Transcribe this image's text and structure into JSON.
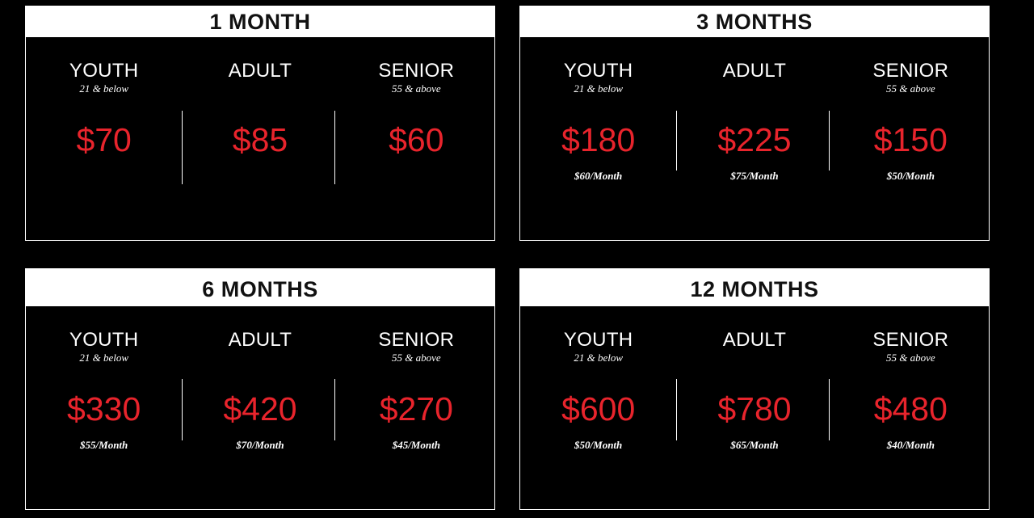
{
  "plans": [
    {
      "title": "1 MONTH",
      "tiers": [
        {
          "name": "YOUTH",
          "age": "21 & below",
          "price": "$70",
          "monthly": ""
        },
        {
          "name": "ADULT",
          "age": "",
          "price": "$85",
          "monthly": ""
        },
        {
          "name": "SENIOR",
          "age": "55 & above",
          "price": "$60",
          "monthly": ""
        }
      ]
    },
    {
      "title": "3 MONTHS",
      "tiers": [
        {
          "name": "YOUTH",
          "age": "21 & below",
          "price": "$180",
          "monthly": "$60/Month"
        },
        {
          "name": "ADULT",
          "age": "",
          "price": "$225",
          "monthly": "$75/Month"
        },
        {
          "name": "SENIOR",
          "age": "55 & above",
          "price": "$150",
          "monthly": "$50/Month"
        }
      ]
    },
    {
      "title": "6 MONTHS",
      "tiers": [
        {
          "name": "YOUTH",
          "age": "21 & below",
          "price": "$330",
          "monthly": "$55/Month"
        },
        {
          "name": "ADULT",
          "age": "",
          "price": "$420",
          "monthly": "$70/Month"
        },
        {
          "name": "SENIOR",
          "age": "55 & above",
          "price": "$270",
          "monthly": "$45/Month"
        }
      ]
    },
    {
      "title": "12 MONTHS",
      "tiers": [
        {
          "name": "YOUTH",
          "age": "21 & below",
          "price": "$600",
          "monthly": "$50/Month"
        },
        {
          "name": "ADULT",
          "age": "",
          "price": "$780",
          "monthly": "$65/Month"
        },
        {
          "name": "SENIOR",
          "age": "55 & above",
          "price": "$480",
          "monthly": "$40/Month"
        }
      ]
    }
  ],
  "colors": {
    "background": "#000000",
    "header_background": "#ffffff",
    "price": "#e8242c",
    "text": "#ffffff"
  }
}
